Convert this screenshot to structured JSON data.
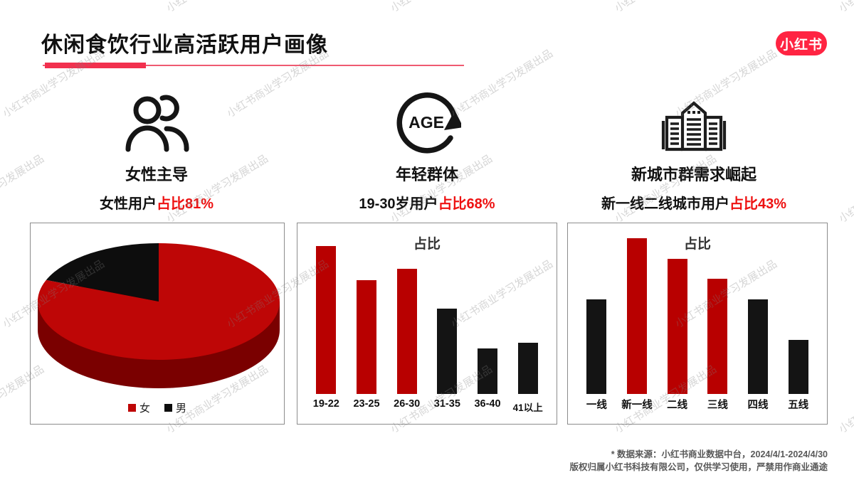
{
  "header": {
    "title": "休闲食饮行业高活跃用户画像",
    "logo_text": "小红书"
  },
  "watermark": {
    "text": "小红书商业学习发展出品"
  },
  "highlights": [
    {
      "icon": "people-icon",
      "label": "女性主导",
      "claim_prefix": "女性用户",
      "claim_highlight": "占比81%"
    },
    {
      "icon": "age-cycle-icon",
      "label": "年轻群体",
      "claim_prefix": "19-30岁用户",
      "claim_highlight": "占比68%"
    },
    {
      "icon": "city-buildings-icon",
      "label": "新城市群需求崛起",
      "claim_prefix": "新一线二线城市用户",
      "claim_highlight": "占比43%"
    }
  ],
  "colors": {
    "brand_red": "#FF2442",
    "accent_text_red": "#EE1111",
    "title_bar_red": "#F2304E",
    "bar_red": "#B80000",
    "bar_black": "#141414",
    "pie_red": "#BE0606",
    "pie_depth_red": "#7A0000",
    "pie_black": "#0D0D0D"
  },
  "chart_data": [
    {
      "type": "pie",
      "style": "3d",
      "title": "",
      "labels": [
        "女",
        "男"
      ],
      "values": [
        81,
        19
      ],
      "colors": [
        "#BE0606",
        "#0D0D0D"
      ],
      "legend_position": "bottom"
    },
    {
      "type": "bar",
      "title": "占比",
      "categories": [
        "19-22",
        "23-25",
        "26-30",
        "31-35",
        "36-40",
        "41以上"
      ],
      "values": [
        26,
        20,
        22,
        15,
        8,
        9
      ],
      "bar_colors": [
        "#B80000",
        "#B80000",
        "#B80000",
        "#141414",
        "#141414",
        "#141414"
      ],
      "xlabel": "",
      "ylabel": "",
      "ylim": [
        0,
        30
      ],
      "grid": false,
      "value_unit": "percent"
    },
    {
      "type": "bar",
      "title": "占比",
      "categories": [
        "一线",
        "新一线",
        "二线",
        "三线",
        "四线",
        "五线"
      ],
      "values": [
        14,
        23,
        20,
        17,
        14,
        8
      ],
      "bar_colors": [
        "#141414",
        "#B80000",
        "#B80000",
        "#B80000",
        "#141414",
        "#141414"
      ],
      "xlabel": "",
      "ylabel": "",
      "ylim": [
        0,
        25
      ],
      "grid": false,
      "value_unit": "percent"
    }
  ],
  "footer": {
    "line1": "* 数据来源：小红书商业数据中台，2024/4/1-2024/4/30",
    "line2": "版权归属小红书科技有限公司，仅供学习使用，严禁用作商业通途"
  }
}
